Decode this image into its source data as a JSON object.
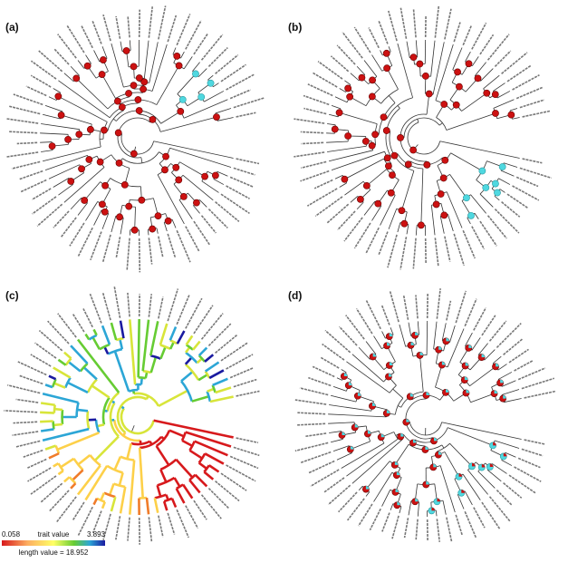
{
  "panels": [
    {
      "label": "(a)"
    },
    {
      "label": "(b)"
    },
    {
      "label": "(c)"
    },
    {
      "label": "(d)"
    }
  ],
  "legend": {
    "min": "0.058",
    "title": "trait value",
    "max": "3.893",
    "length": "length value = 18.952"
  }
}
